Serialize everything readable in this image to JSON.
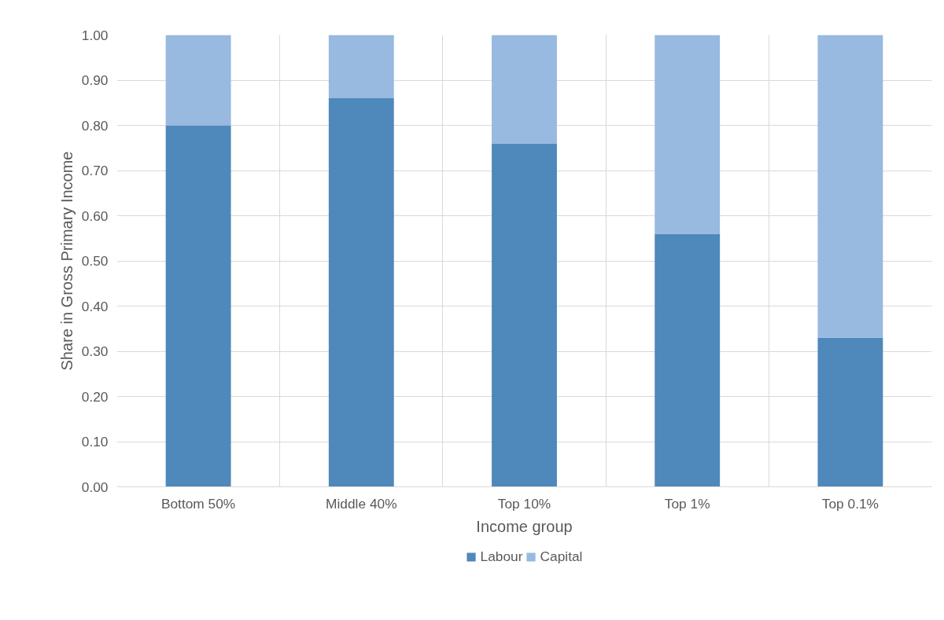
{
  "chart_data": {
    "type": "bar",
    "stacked": true,
    "xlabel": "Income group",
    "ylabel": "Share in Gross Primary Income",
    "categories": [
      "Bottom 50%",
      "Middle 40%",
      "Top 10%",
      "Top 1%",
      "Top 0.1%"
    ],
    "series": [
      {
        "name": "Labour",
        "color": "#4f88bb",
        "values": [
          0.8,
          0.86,
          0.76,
          0.56,
          0.33
        ]
      },
      {
        "name": "Capital",
        "color": "#98b9e0",
        "values": [
          0.2,
          0.14,
          0.24,
          0.44,
          0.67
        ]
      }
    ],
    "ylim": [
      0,
      1
    ],
    "yticks": [
      {
        "value": 0,
        "label": "0.00"
      },
      {
        "value": 0.1,
        "label": "0.10"
      },
      {
        "value": 0.2,
        "label": "0.20"
      },
      {
        "value": 0.3,
        "label": "0.30"
      },
      {
        "value": 0.4,
        "label": "0.40"
      },
      {
        "value": 0.5,
        "label": "0.50"
      },
      {
        "value": 0.6,
        "label": "0.60"
      },
      {
        "value": 0.7,
        "label": "0.70"
      },
      {
        "value": 0.8,
        "label": "0.80"
      },
      {
        "value": 0.9,
        "label": "0.90"
      },
      {
        "value": 1,
        "label": "1.00"
      }
    ],
    "grid": true,
    "legend": "bottom"
  }
}
